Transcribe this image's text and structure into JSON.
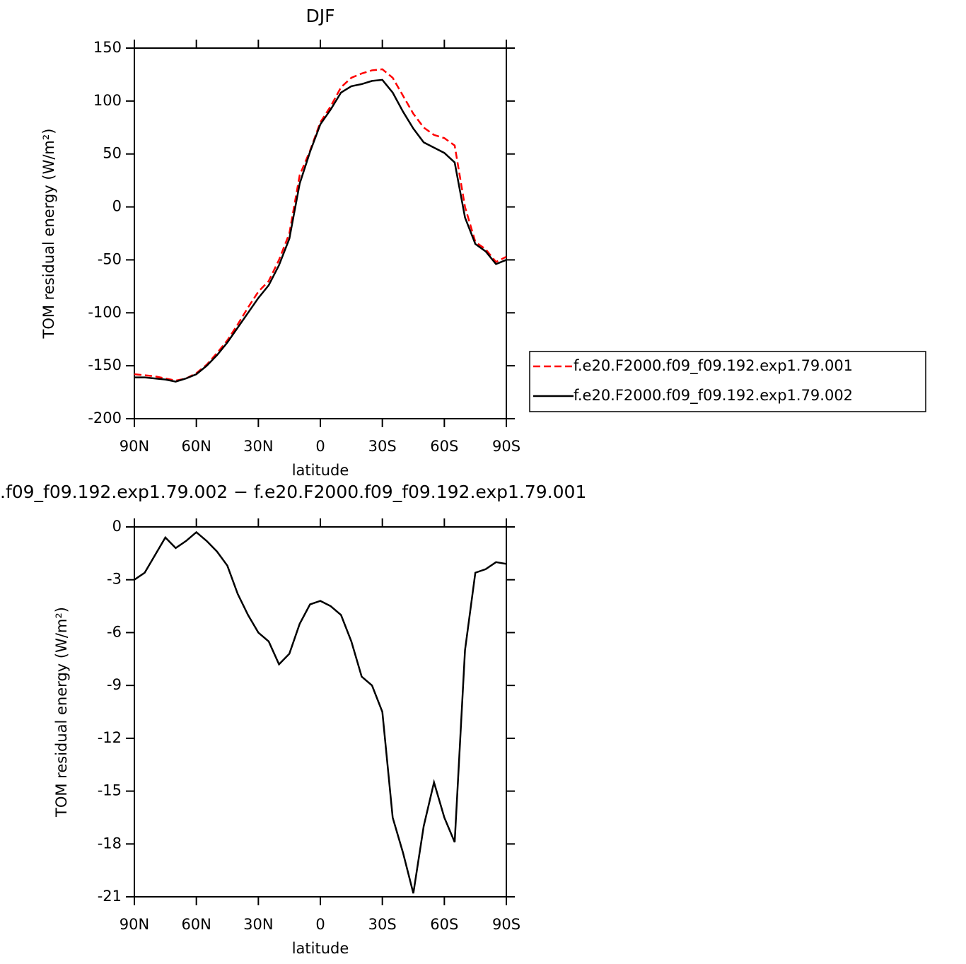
{
  "chart_data": [
    {
      "type": "line",
      "title": "DJF",
      "xlabel": "latitude",
      "ylabel": "TOM residual energy (W/m²)",
      "x": [
        90,
        85,
        80,
        75,
        70,
        65,
        60,
        55,
        50,
        45,
        40,
        35,
        30,
        25,
        20,
        15,
        10,
        5,
        0,
        -5,
        -10,
        -15,
        -20,
        -25,
        -30,
        -35,
        -40,
        -45,
        -50,
        -55,
        -60,
        -65,
        -70,
        -75,
        -80,
        -85,
        -90
      ],
      "xlim": [
        90,
        -90
      ],
      "xticks": [
        {
          "value": 90,
          "label": "90N"
        },
        {
          "value": 60,
          "label": "60N"
        },
        {
          "value": 30,
          "label": "30N"
        },
        0,
        {
          "value": -30,
          "label": "30S"
        },
        {
          "value": -60,
          "label": "60S"
        },
        {
          "value": -90,
          "label": "90S"
        }
      ],
      "ylim": [
        -200,
        150
      ],
      "yticks": [
        -200,
        -150,
        -100,
        -50,
        0,
        50,
        100,
        150
      ],
      "legend": "right",
      "series": [
        {
          "name": "f.e20.F2000.f09_f09.192.exp1.79.001",
          "color": "#ff0000",
          "dash": true,
          "values": [
            -158,
            -159,
            -160,
            -162,
            -164,
            -162,
            -157,
            -149,
            -138,
            -126,
            -111,
            -95,
            -80,
            -70,
            -50,
            -25,
            30,
            53,
            80,
            95,
            113,
            122,
            126,
            129,
            130,
            122,
            105,
            88,
            75,
            68,
            65,
            58,
            0,
            -33,
            -40,
            -52,
            -47
          ]
        },
        {
          "name": "f.e20.F2000.f09_f09.192.exp1.79.002",
          "color": "#000000",
          "dash": false,
          "values": [
            -161,
            -161,
            -162,
            -163,
            -165,
            -162,
            -158,
            -150,
            -140,
            -128,
            -114,
            -100,
            -86,
            -74,
            -55,
            -30,
            22,
            52,
            78,
            92,
            108,
            114,
            116,
            119,
            120,
            108,
            90,
            74,
            61,
            56,
            51,
            42,
            -10,
            -35,
            -42,
            -54,
            -50
          ]
        }
      ]
    },
    {
      "type": "line",
      "title": ".f09_f09.192.exp1.79.002 − f.e20.F2000.f09_f09.192.exp1.79.001",
      "xlabel": "latitude",
      "ylabel": "TOM residual energy (W/m²)",
      "x": [
        90,
        85,
        80,
        75,
        70,
        65,
        60,
        55,
        50,
        45,
        40,
        35,
        30,
        25,
        20,
        15,
        10,
        5,
        0,
        -5,
        -10,
        -15,
        -20,
        -25,
        -30,
        -35,
        -40,
        -45,
        -50,
        -55,
        -60,
        -65,
        -70,
        -75,
        -80,
        -85,
        -90
      ],
      "xlim": [
        90,
        -90
      ],
      "xticks": [
        {
          "value": 90,
          "label": "90N"
        },
        {
          "value": 60,
          "label": "60N"
        },
        {
          "value": 30,
          "label": "30N"
        },
        0,
        {
          "value": -30,
          "label": "30S"
        },
        {
          "value": -60,
          "label": "60S"
        },
        {
          "value": -90,
          "label": "90S"
        }
      ],
      "ylim": [
        -21,
        0
      ],
      "yticks": [
        -21,
        -18,
        -15,
        -12,
        -9,
        -6,
        -3,
        0
      ],
      "series": [
        {
          "color": "#000000",
          "dash": false,
          "values": [
            -3.0,
            -2.6,
            -1.6,
            -0.6,
            -1.2,
            -0.8,
            -0.3,
            -0.8,
            -1.4,
            -2.2,
            -3.8,
            -5.0,
            -6.0,
            -6.5,
            -7.8,
            -7.2,
            -5.5,
            -4.4,
            -4.2,
            -4.5,
            -5.0,
            -6.5,
            -8.5,
            -9.0,
            -10.5,
            -16.5,
            -18.5,
            -20.8,
            -17.0,
            -14.5,
            -16.5,
            -17.9,
            -7.0,
            -2.6,
            -2.4,
            -2.0,
            -2.1
          ]
        }
      ]
    }
  ]
}
